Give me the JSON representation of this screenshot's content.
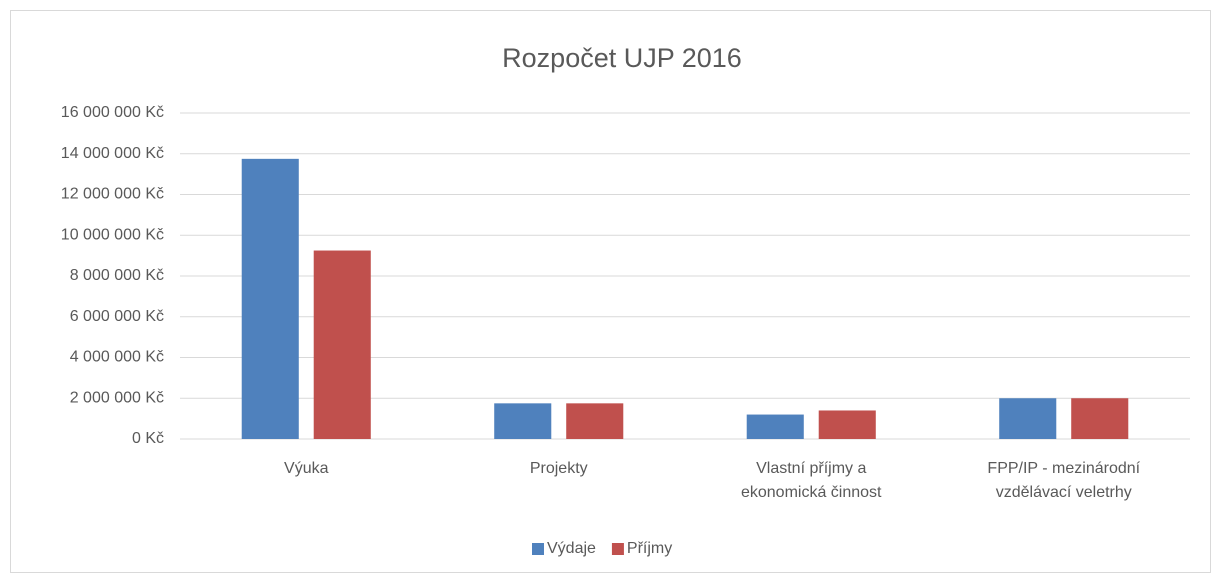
{
  "chart_data": {
    "type": "bar",
    "title": "Rozpočet UJP 2016",
    "categories": [
      "Výuka",
      "Projekty",
      "Vlastní příjmy a ekonomická činnost",
      "FPP/IP - mezinárodní vzdělávací veletrhy"
    ],
    "series": [
      {
        "name": "Výdaje",
        "color": "#4f81bd",
        "values": [
          13750000,
          1750000,
          1200000,
          2000000
        ]
      },
      {
        "name": "Příjmy",
        "color": "#c0504d",
        "values": [
          9250000,
          1750000,
          1400000,
          2000000
        ]
      }
    ],
    "ylim": [
      0,
      16000000
    ],
    "yticks": [
      {
        "value": 0,
        "label": "0 Kč"
      },
      {
        "value": 2000000,
        "label": "2 000 000 Kč"
      },
      {
        "value": 4000000,
        "label": "4 000 000 Kč"
      },
      {
        "value": 6000000,
        "label": "6 000 000 Kč"
      },
      {
        "value": 8000000,
        "label": "8 000 000 Kč"
      },
      {
        "value": 10000000,
        "label": "10 000 000 Kč"
      },
      {
        "value": 12000000,
        "label": "12 000 000 Kč"
      },
      {
        "value": 14000000,
        "label": "14 000 000 Kč"
      },
      {
        "value": 16000000,
        "label": "16 000 000 Kč"
      }
    ],
    "grid": true,
    "legend": "bottom"
  }
}
